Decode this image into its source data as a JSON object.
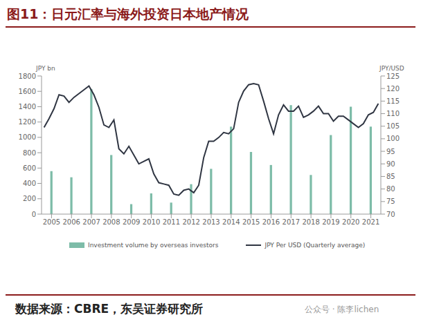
{
  "chart_data": {
    "type": "bar",
    "title": "图11：日元汇率与海外投资日本地产情况",
    "source": "数据来源：CBRE，东吴证券研究所",
    "watermark": "公众号 · 陈李lichen",
    "ylabel": "JPY bn",
    "y2label": "JPY/USD",
    "xlim": [
      2004.5,
      2021.5
    ],
    "xticks": [
      2005,
      2006,
      2007,
      2008,
      2009,
      2010,
      2011,
      2012,
      2013,
      2014,
      2015,
      2016,
      2017,
      2018,
      2019,
      2020,
      2021
    ],
    "ylim": [
      0,
      1800
    ],
    "yticks": [
      0,
      200,
      400,
      600,
      800,
      1000,
      1200,
      1400,
      1600,
      1800
    ],
    "y2lim": [
      70,
      125
    ],
    "y2ticks": [
      70,
      75,
      80,
      85,
      90,
      95,
      100,
      105,
      110,
      115,
      120,
      125
    ],
    "grid": false,
    "legend": "bottom",
    "series": [
      {
        "name": "Investment volume by overseas investors",
        "type": "bar",
        "color": "#7dbca8",
        "x": [
          2005,
          2006,
          2007,
          2008,
          2009,
          2010,
          2011,
          2012,
          2013,
          2014,
          2015,
          2016,
          2017,
          2018,
          2019,
          2020,
          2021
        ],
        "values": [
          560,
          480,
          1630,
          770,
          130,
          270,
          150,
          390,
          590,
          1140,
          810,
          640,
          1420,
          510,
          1030,
          1400,
          1140
        ]
      },
      {
        "name": "JPY Per USD (Quarterly average)",
        "type": "line",
        "axis": "y2",
        "color": "#2f3542",
        "x": [
          2004.625,
          2004.875,
          2005.125,
          2005.375,
          2005.625,
          2005.875,
          2006.125,
          2006.375,
          2006.625,
          2006.875,
          2007.125,
          2007.375,
          2007.625,
          2007.875,
          2008.125,
          2008.375,
          2008.625,
          2008.875,
          2009.125,
          2009.375,
          2009.625,
          2009.875,
          2010.125,
          2010.375,
          2010.625,
          2010.875,
          2011.125,
          2011.375,
          2011.625,
          2011.875,
          2012.125,
          2012.375,
          2012.625,
          2012.875,
          2013.125,
          2013.375,
          2013.625,
          2013.875,
          2014.125,
          2014.375,
          2014.625,
          2014.875,
          2015.125,
          2015.375,
          2015.625,
          2015.875,
          2016.125,
          2016.375,
          2016.625,
          2016.875,
          2017.125,
          2017.375,
          2017.625,
          2017.875,
          2018.125,
          2018.375,
          2018.625,
          2018.875,
          2019.125,
          2019.375,
          2019.625,
          2019.875,
          2020.125,
          2020.375,
          2020.625,
          2020.875,
          2021.125,
          2021.375
        ],
        "values": [
          104.5,
          108,
          112,
          117.5,
          117,
          114.5,
          116.5,
          118,
          119.5,
          121,
          117.5,
          112.5,
          105.5,
          104.5,
          107.5,
          96,
          94,
          97,
          93.5,
          90,
          91,
          92,
          86,
          82.5,
          82,
          81.5,
          78,
          77.5,
          79.5,
          80,
          78.5,
          81.5,
          92.5,
          99,
          99,
          100.5,
          102.5,
          102,
          104,
          114.5,
          119,
          121.5,
          122,
          121.5,
          115,
          108,
          102,
          109.5,
          113.5,
          111,
          111,
          113,
          108.5,
          109.5,
          111,
          113,
          110,
          110,
          107,
          109,
          109,
          107.5,
          106,
          104.5,
          106,
          109.5,
          110.5,
          114
        ]
      }
    ]
  }
}
